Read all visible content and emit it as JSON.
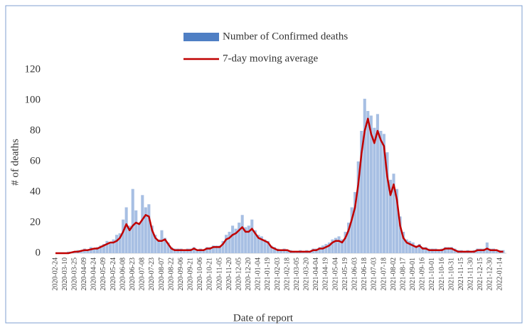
{
  "chart_data": {
    "type": "bar_line",
    "y_axis_label": "# of deaths",
    "x_axis_label": "Date of report",
    "ylim": [
      0,
      120
    ],
    "yticks": [
      0,
      20,
      40,
      60,
      80,
      100,
      120
    ],
    "grid": false,
    "legend": "top",
    "categories": [
      "2020-02-24",
      null,
      null,
      "2020-03-10",
      null,
      null,
      "2020-03-25",
      null,
      null,
      "2020-04-09",
      null,
      null,
      "2020-04-24",
      null,
      null,
      "2020-05-09",
      null,
      null,
      "2020-05-24",
      null,
      null,
      "2020-06-08",
      null,
      null,
      "2020-06-23",
      null,
      null,
      "2020-07-08",
      null,
      null,
      "2020-07-23",
      null,
      null,
      "2020-08-07",
      null,
      null,
      "2020-08-22",
      null,
      null,
      "2020-09-06",
      null,
      null,
      "2020-09-21",
      null,
      null,
      "2020-10-06",
      null,
      null,
      "2020-10-21",
      null,
      null,
      "2020-11-05",
      null,
      null,
      "2020-11-20",
      null,
      null,
      "2020-12-05",
      null,
      null,
      "2020-12-20",
      null,
      null,
      "2021-01-04",
      null,
      null,
      "2021-01-19",
      null,
      null,
      "2021-02-03",
      null,
      null,
      "2021-02-18",
      null,
      null,
      "2021-03-05",
      null,
      null,
      "2021-03-20",
      null,
      null,
      "2021-04-04",
      null,
      null,
      "2021-04-19",
      null,
      null,
      "2021-05-04",
      null,
      null,
      "2021-05-19",
      null,
      null,
      "2021-06-03",
      null,
      null,
      "2021-06-18",
      null,
      null,
      "2021-07-03",
      null,
      null,
      "2021-07-18",
      null,
      null,
      "2021-08-02",
      null,
      null,
      "2021-08-17",
      null,
      null,
      "2021-09-01",
      null,
      null,
      "2021-09-16",
      null,
      null,
      "2021-10-01",
      null,
      null,
      "2021-10-16",
      null,
      null,
      "2021-10-31",
      null,
      null,
      "2021-11-15",
      null,
      null,
      "2021-11-30",
      null,
      null,
      "2021-12-15",
      null,
      null,
      "2021-12-30",
      null,
      null,
      "2022-01-14",
      null
    ],
    "series": [
      {
        "name": "Number of Confirmed deaths",
        "kind": "bar",
        "color": "#a7bfe3",
        "values": [
          0,
          0,
          0,
          0,
          1,
          1,
          1,
          2,
          1,
          3,
          2,
          4,
          3,
          4,
          5,
          6,
          8,
          7,
          9,
          12,
          13,
          22,
          30,
          18,
          42,
          28,
          20,
          38,
          30,
          32,
          18,
          12,
          9,
          15,
          10,
          7,
          4,
          3,
          3,
          3,
          2,
          3,
          3,
          4,
          2,
          3,
          2,
          4,
          4,
          5,
          5,
          5,
          8,
          12,
          14,
          18,
          16,
          20,
          25,
          17,
          18,
          22,
          15,
          12,
          11,
          9,
          8,
          5,
          4,
          3,
          2,
          3,
          2,
          2,
          1,
          1,
          2,
          1,
          2,
          1,
          3,
          3,
          4,
          5,
          6,
          7,
          9,
          10,
          11,
          9,
          14,
          20,
          30,
          40,
          60,
          80,
          101,
          93,
          90,
          82,
          91,
          80,
          78,
          66,
          48,
          52,
          42,
          24,
          14,
          9,
          8,
          7,
          5,
          6,
          4,
          4,
          3,
          3,
          3,
          2,
          3,
          4,
          4,
          4,
          3,
          2,
          2,
          1,
          2,
          1,
          2,
          3,
          3,
          3,
          7,
          3,
          3,
          2,
          2,
          2
        ]
      },
      {
        "name": "7-day moving average",
        "kind": "line",
        "color": "#c00000",
        "values": [
          0,
          0,
          0,
          0,
          0,
          0.5,
          1,
          1,
          1.5,
          2,
          2,
          2.5,
          3,
          3,
          4,
          5,
          6,
          7,
          7,
          8,
          10,
          14,
          19,
          15,
          18,
          20,
          19,
          22,
          25,
          24,
          15,
          10,
          8,
          8,
          9,
          6,
          3,
          2,
          2,
          2,
          2,
          2,
          2,
          3,
          2,
          2,
          2,
          3,
          3,
          4,
          4,
          4,
          6,
          9,
          10,
          12,
          13,
          15,
          17,
          14,
          14,
          16,
          13,
          10,
          9,
          8,
          7,
          4,
          3,
          2,
          2,
          2,
          2,
          1,
          1,
          1,
          1,
          1,
          1,
          1,
          2,
          2,
          3,
          3,
          4,
          5,
          7,
          8,
          8,
          7,
          10,
          15,
          22,
          30,
          45,
          65,
          80,
          88,
          78,
          72,
          80,
          74,
          70,
          50,
          38,
          45,
          35,
          18,
          10,
          7,
          6,
          5,
          4,
          5,
          3,
          3,
          2,
          2,
          2,
          2,
          2,
          3,
          3,
          3,
          2,
          1,
          1,
          1,
          1,
          1,
          1,
          2,
          2,
          2,
          3,
          2,
          2,
          2,
          1,
          1
        ]
      }
    ]
  }
}
